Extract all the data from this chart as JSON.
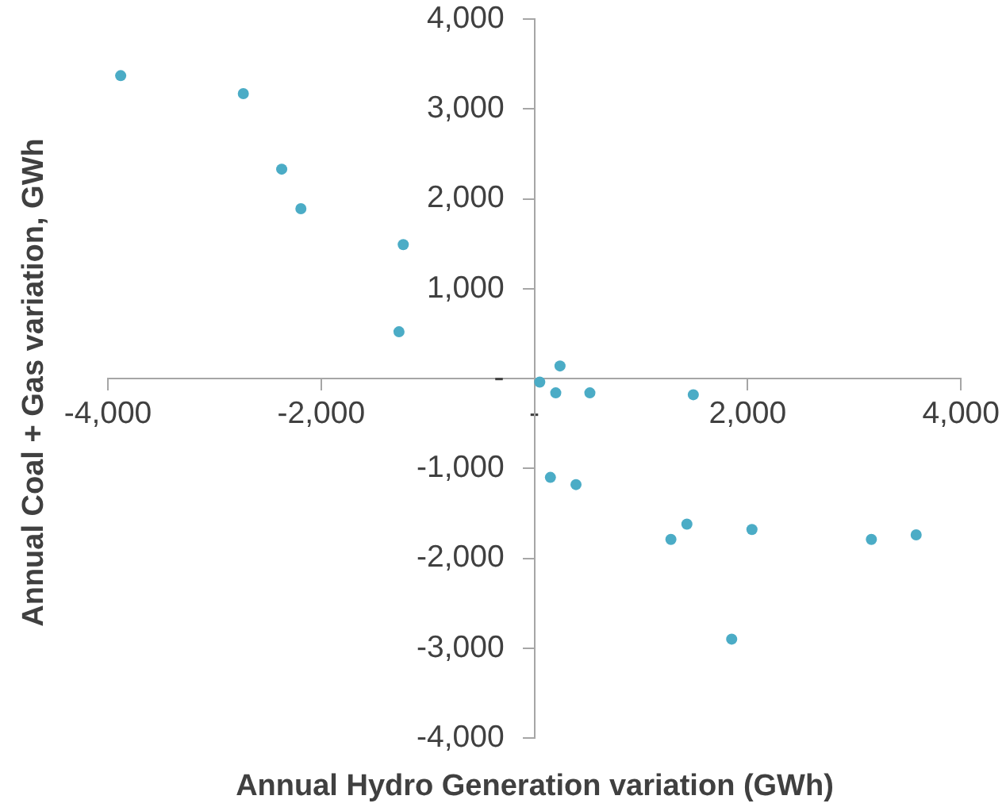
{
  "chart_data": {
    "type": "scatter",
    "xlabel": "Annual Hydro Generation variation (GWh)",
    "ylabel": "Annual Coal + Gas variation, GWh",
    "x": [
      -3880,
      -2730,
      -2370,
      -2190,
      -1230,
      -1270,
      50,
      240,
      200,
      520,
      1490,
      150,
      390,
      1430,
      1280,
      2040,
      3160,
      3580,
      1850
    ],
    "values": [
      3370,
      3170,
      2330,
      1890,
      1490,
      520,
      -40,
      140,
      -160,
      -160,
      -180,
      -1100,
      -1180,
      -1620,
      -1790,
      -1680,
      -1790,
      -1740,
      -2900
    ],
    "color": "#4bacc6",
    "marker": "circle",
    "xlim": [
      -4000,
      4000
    ],
    "ylim": [
      -4000,
      4000
    ],
    "xticks": [
      {
        "value": -4000,
        "label": "-4,000"
      },
      {
        "value": -2000,
        "label": "-2,000"
      },
      {
        "value": 0,
        "label": "-"
      },
      {
        "value": 2000,
        "label": "2,000"
      },
      {
        "value": 4000,
        "label": "4,000"
      }
    ],
    "yticks": [
      {
        "value": -4000,
        "label": "-4,000"
      },
      {
        "value": -3000,
        "label": "-3,000"
      },
      {
        "value": -2000,
        "label": "-2,000"
      },
      {
        "value": -1000,
        "label": "-1,000"
      },
      {
        "value": 0,
        "label": "-"
      },
      {
        "value": 1000,
        "label": "1,000"
      },
      {
        "value": 2000,
        "label": "2,000"
      },
      {
        "value": 3000,
        "label": "3,000"
      },
      {
        "value": 4000,
        "label": "4,000"
      }
    ]
  }
}
